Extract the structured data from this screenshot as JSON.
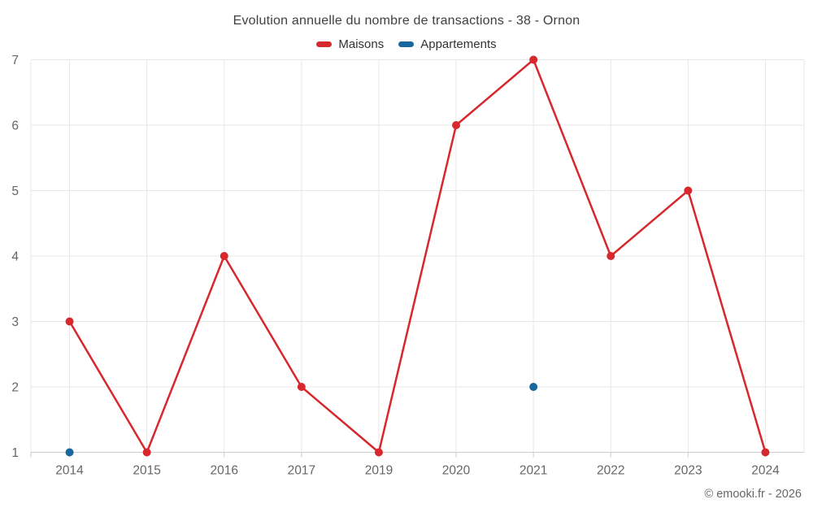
{
  "chart_data": {
    "type": "line",
    "title": "Evolution annuelle du nombre de transactions - 38 - Ornon",
    "categories": [
      "2014",
      "2015",
      "2016",
      "2017",
      "2019",
      "2020",
      "2021",
      "2022",
      "2023",
      "2024"
    ],
    "series": [
      {
        "name": "Maisons",
        "color": "#d6282d",
        "draw_line": true,
        "values": [
          3,
          1,
          4,
          2,
          1,
          6,
          7,
          4,
          5,
          1
        ]
      },
      {
        "name": "Appartements",
        "color": "#17699d",
        "draw_line": false,
        "values": [
          1,
          null,
          null,
          null,
          null,
          null,
          2,
          null,
          null,
          null
        ]
      }
    ],
    "xlabel": "",
    "ylabel": "",
    "ylim": [
      1,
      7
    ],
    "yticks": [
      1,
      2,
      3,
      4,
      5,
      6,
      7
    ],
    "grid": true,
    "legend_position": "top",
    "credit": "© emooki.fr - 2026",
    "style": {
      "background": "#ffffff",
      "grid_color": "#e7e7e7",
      "axis_line_color": "#cccccc",
      "tick_color": "#cccccc",
      "tick_label_color": "#666666",
      "title_color": "#404040",
      "legend_text_color": "#333333",
      "credit_color": "#666666"
    }
  }
}
